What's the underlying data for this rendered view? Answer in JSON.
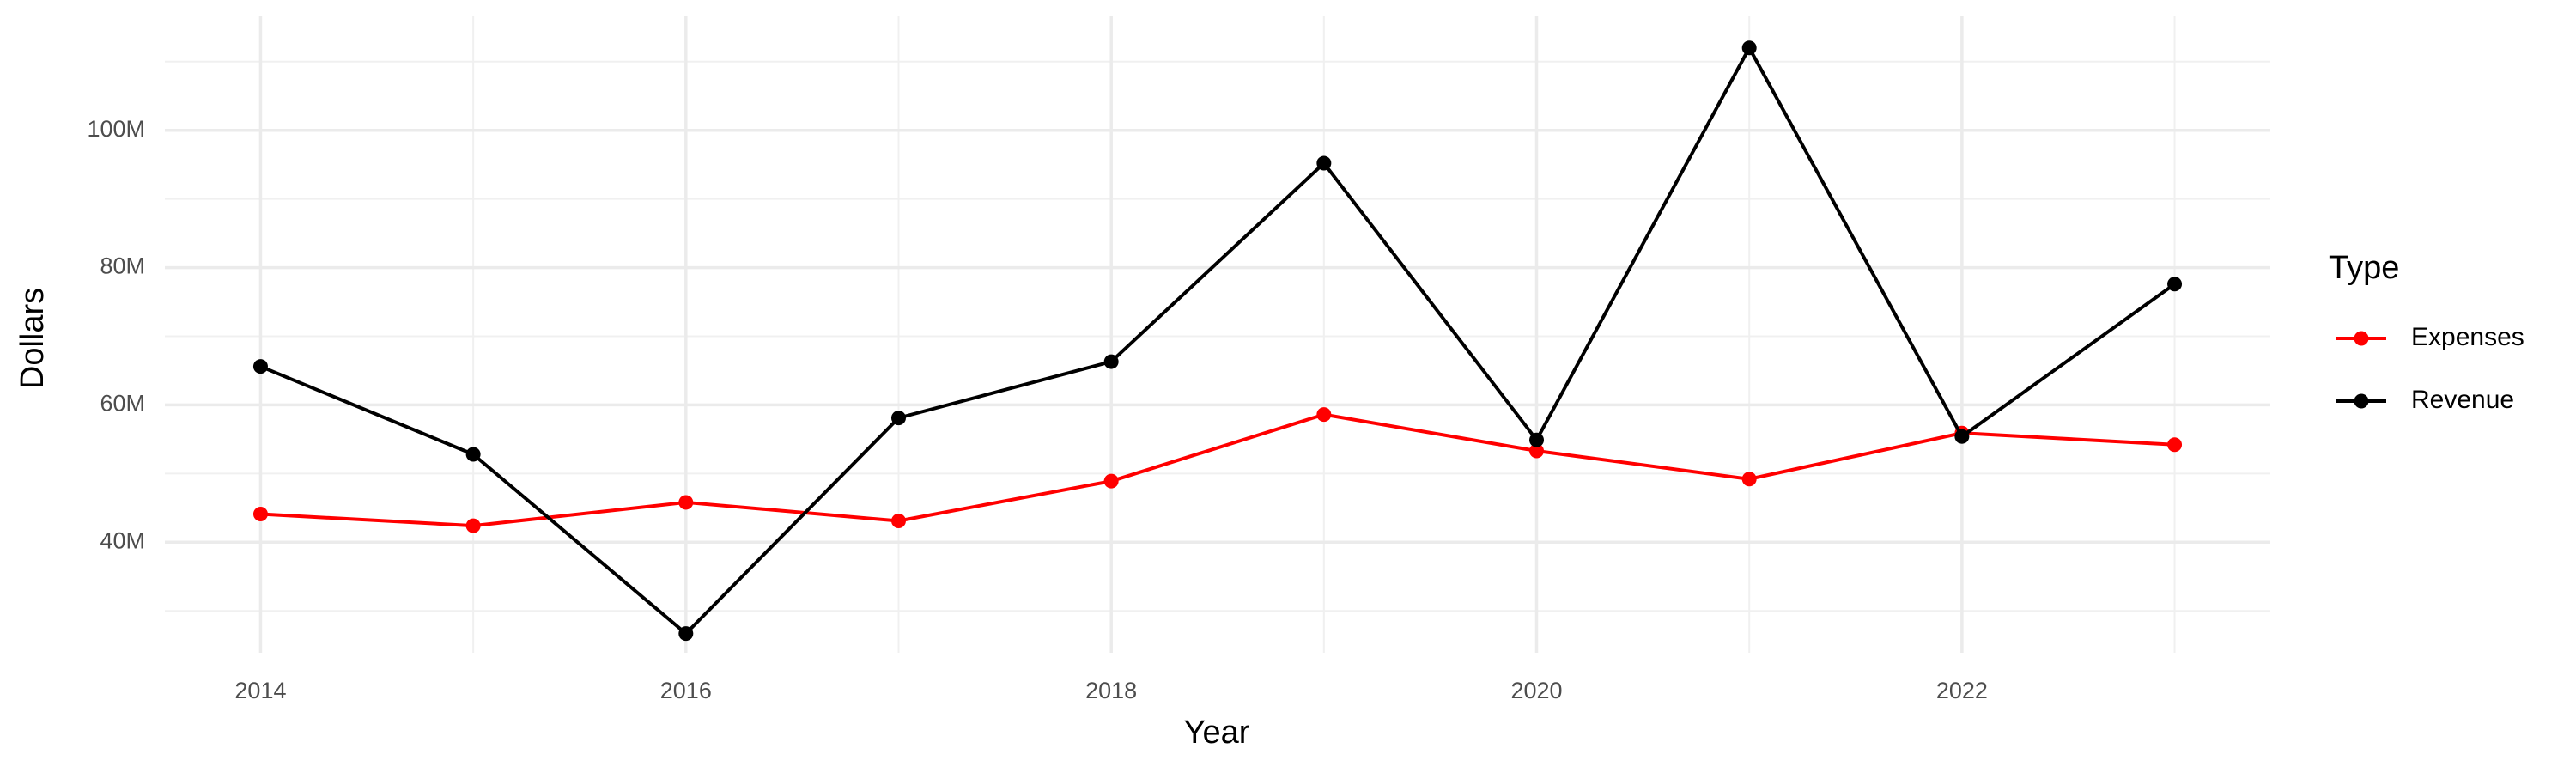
{
  "chart_data": {
    "type": "line",
    "x_label": "Year",
    "y_label": "Dollars",
    "legend_title": "Type",
    "x": [
      2014,
      2015,
      2016,
      2017,
      2018,
      2019,
      2020,
      2021,
      2022,
      2023
    ],
    "series": [
      {
        "name": "Expenses",
        "color": "#ff0000",
        "values": [
          44100000,
          42400000,
          45800000,
          43100000,
          48900000,
          58600000,
          53300000,
          49200000,
          55900000,
          54200000
        ]
      },
      {
        "name": "Revenue",
        "color": "#000000",
        "values": [
          65600000,
          52800000,
          26700000,
          58100000,
          66300000,
          95200000,
          54900000,
          112000000,
          55400000,
          77600000
        ]
      }
    ],
    "xlim": [
      2013.55,
      2023.45
    ],
    "xticks": [
      2014,
      2016,
      2018,
      2020,
      2022
    ],
    "ylim": [
      23900000,
      116600000
    ],
    "yticks": [
      {
        "value": 40000000,
        "label": "40M"
      },
      {
        "value": 60000000,
        "label": "60M"
      },
      {
        "value": 80000000,
        "label": "80M"
      },
      {
        "value": 100000000,
        "label": "100M"
      }
    ],
    "grid": true,
    "minor_grid": true,
    "legend_position": "right"
  }
}
